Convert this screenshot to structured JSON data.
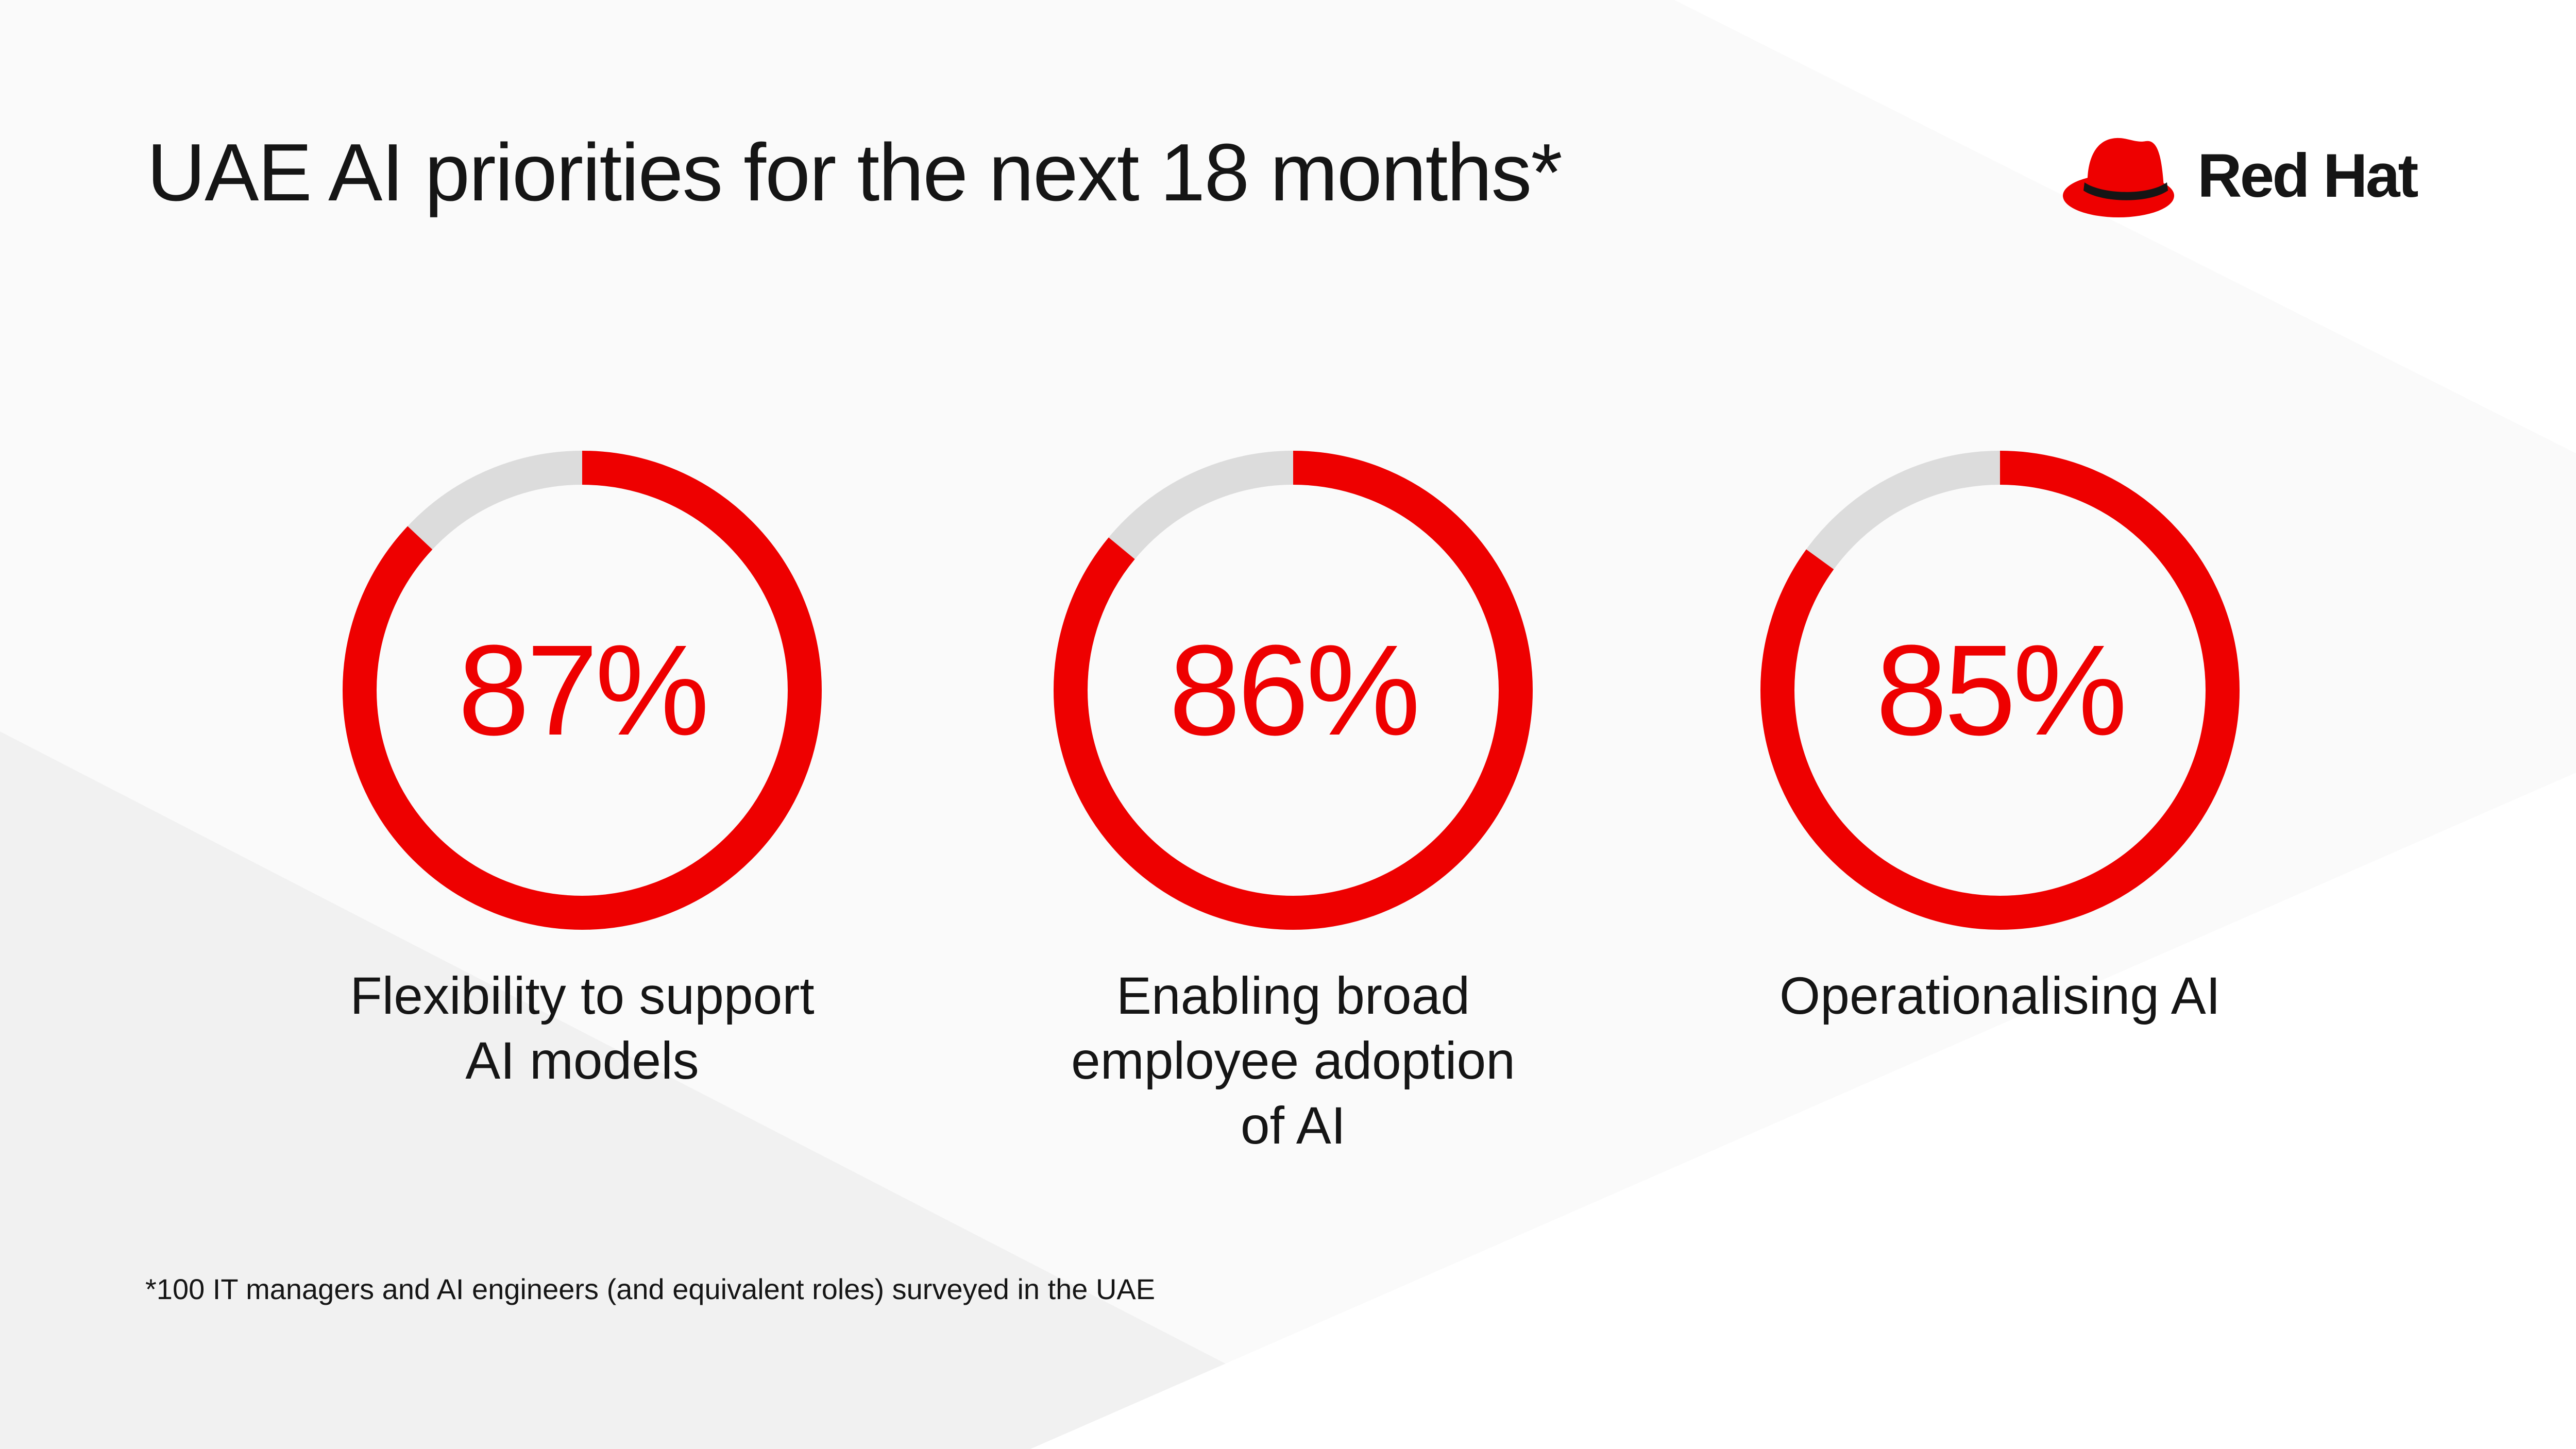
{
  "title": "UAE AI priorities for the next 18 months*",
  "brand": {
    "name": "Red Hat",
    "icon": "red-hat-icon"
  },
  "colors": {
    "accent": "#ee0000",
    "track": "#dcdcdc",
    "text": "#151515",
    "background": "#fafafa"
  },
  "chart_data": {
    "type": "pie",
    "title": "UAE AI priorities for the next 18 months*",
    "unit": "%",
    "items": [
      {
        "value": 87,
        "label": "87%",
        "caption_lines": [
          "Flexibility to support",
          "AI models"
        ]
      },
      {
        "value": 86,
        "label": "86%",
        "caption_lines": [
          "Enabling broad",
          "employee adoption",
          "of AI"
        ]
      },
      {
        "value": 85,
        "label": "85%",
        "caption_lines": [
          "Operationalising AI"
        ]
      }
    ]
  },
  "footnote": "*100 IT managers and AI engineers (and equivalent roles) surveyed in the UAE"
}
